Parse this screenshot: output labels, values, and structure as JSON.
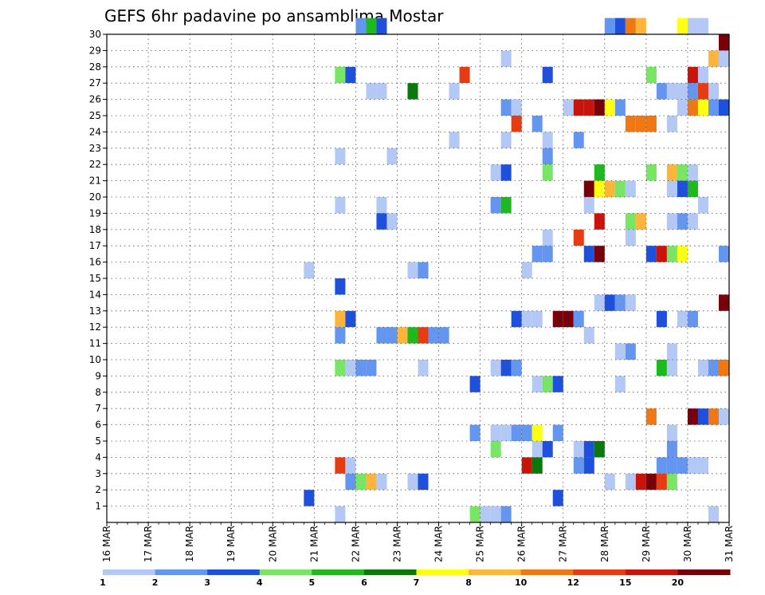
{
  "chart_data": {
    "type": "heatmap",
    "title": "GEFS 6hr padavine po ansamblima Mostar",
    "xlabel": "",
    "ylabel": "",
    "x_tick_labels": [
      "16 MAR",
      "17 MAR",
      "18 MAR",
      "19 MAR",
      "20 MAR",
      "21 MAR",
      "22 MAR",
      "23 MAR",
      "24 MAR",
      "25 MAR",
      "26 MAR",
      "27 MAR",
      "28 MAR",
      "29 MAR",
      "30 MAR",
      "31 MAR"
    ],
    "y_tick_labels": [
      "1",
      "2",
      "3",
      "4",
      "5",
      "6",
      "7",
      "8",
      "9",
      "10",
      "11",
      "12",
      "13",
      "14",
      "15",
      "16",
      "17",
      "18",
      "19",
      "20",
      "21",
      "22",
      "23",
      "24",
      "25",
      "26",
      "27",
      "28",
      "29",
      "30"
    ],
    "xlim_days": [
      16,
      31
    ],
    "steps_per_day": 4,
    "ylim": [
      0,
      30
    ],
    "grid": true,
    "legend": {
      "placement": "bottom",
      "levels": [
        "1",
        "2",
        "3",
        "4",
        "5",
        "6",
        "7",
        "8",
        "10",
        "12",
        "15",
        "20"
      ],
      "colors": [
        "#b4c8f5",
        "#6496f0",
        "#1e50dc",
        "#78e664",
        "#1eb91e",
        "#0a780a",
        "#ffff14",
        "#ffb43c",
        "#f07814",
        "#e63c14",
        "#c8140a",
        "#78000a"
      ]
    },
    "cells": [
      [
        30,
        22.0,
        2
      ],
      [
        30,
        22.25,
        5
      ],
      [
        30,
        22.5,
        3
      ],
      [
        30,
        28.0,
        2
      ],
      [
        30,
        28.25,
        3
      ],
      [
        30,
        28.5,
        9
      ],
      [
        30,
        28.75,
        8
      ],
      [
        30,
        29.75,
        7
      ],
      [
        30,
        30.0,
        1
      ],
      [
        30,
        30.25,
        1
      ],
      [
        29,
        30.75,
        12
      ],
      [
        28,
        25.5,
        1
      ],
      [
        28,
        30.5,
        8
      ],
      [
        28,
        30.75,
        1
      ],
      [
        27,
        21.5,
        4
      ],
      [
        27,
        21.75,
        3
      ],
      [
        27,
        24.5,
        10
      ],
      [
        27,
        26.5,
        3
      ],
      [
        27,
        29.0,
        4
      ],
      [
        27,
        30.0,
        11
      ],
      [
        27,
        30.25,
        1
      ],
      [
        26,
        22.25,
        1
      ],
      [
        26,
        22.5,
        1
      ],
      [
        26,
        23.25,
        6
      ],
      [
        26,
        24.25,
        1
      ],
      [
        26,
        29.25,
        2
      ],
      [
        26,
        29.5,
        1
      ],
      [
        26,
        29.75,
        1
      ],
      [
        26,
        30.0,
        2
      ],
      [
        26,
        30.25,
        10
      ],
      [
        26,
        30.5,
        1
      ],
      [
        25,
        25.5,
        2
      ],
      [
        25,
        25.75,
        1
      ],
      [
        25,
        27.0,
        1
      ],
      [
        25,
        27.25,
        11
      ],
      [
        25,
        27.5,
        11
      ],
      [
        25,
        27.75,
        12
      ],
      [
        25,
        28.0,
        7
      ],
      [
        25,
        28.25,
        2
      ],
      [
        25,
        29.75,
        1
      ],
      [
        25,
        30.0,
        9
      ],
      [
        25,
        30.25,
        7
      ],
      [
        25,
        30.5,
        2
      ],
      [
        25,
        30.75,
        3
      ],
      [
        24,
        25.75,
        10
      ],
      [
        24,
        26.25,
        2
      ],
      [
        24,
        28.5,
        9
      ],
      [
        24,
        28.75,
        9
      ],
      [
        24,
        29.0,
        9
      ],
      [
        24,
        29.5,
        1
      ],
      [
        23,
        24.25,
        1
      ],
      [
        23,
        25.5,
        1
      ],
      [
        23,
        26.5,
        1
      ],
      [
        23,
        27.25,
        2
      ],
      [
        22,
        21.5,
        1
      ],
      [
        22,
        22.75,
        1
      ],
      [
        22,
        26.5,
        2
      ],
      [
        21,
        25.25,
        1
      ],
      [
        21,
        25.5,
        3
      ],
      [
        21,
        26.5,
        4
      ],
      [
        21,
        27.75,
        5
      ],
      [
        21,
        29.0,
        4
      ],
      [
        21,
        29.5,
        8
      ],
      [
        21,
        29.75,
        4
      ],
      [
        21,
        30.0,
        1
      ],
      [
        20,
        27.5,
        12
      ],
      [
        20,
        27.75,
        7
      ],
      [
        20,
        28.0,
        8
      ],
      [
        20,
        28.25,
        4
      ],
      [
        20,
        28.5,
        1
      ],
      [
        20,
        29.5,
        1
      ],
      [
        20,
        29.75,
        3
      ],
      [
        20,
        30.0,
        5
      ],
      [
        19,
        21.5,
        1
      ],
      [
        19,
        22.5,
        1
      ],
      [
        19,
        25.25,
        2
      ],
      [
        19,
        25.5,
        5
      ],
      [
        19,
        27.5,
        1
      ],
      [
        19,
        30.25,
        1
      ],
      [
        18,
        22.5,
        3
      ],
      [
        18,
        22.75,
        1
      ],
      [
        18,
        27.75,
        11
      ],
      [
        18,
        28.5,
        4
      ],
      [
        18,
        28.75,
        8
      ],
      [
        18,
        29.5,
        1
      ],
      [
        18,
        29.75,
        2
      ],
      [
        18,
        30.0,
        1
      ],
      [
        17,
        26.5,
        1
      ],
      [
        17,
        27.25,
        10
      ],
      [
        17,
        28.5,
        1
      ],
      [
        16,
        26.25,
        2
      ],
      [
        16,
        26.5,
        2
      ],
      [
        16,
        27.5,
        3
      ],
      [
        16,
        27.75,
        12
      ],
      [
        16,
        29.0,
        3
      ],
      [
        16,
        29.25,
        11
      ],
      [
        16,
        29.5,
        4
      ],
      [
        16,
        29.75,
        7
      ],
      [
        16,
        30.75,
        2
      ],
      [
        15,
        20.75,
        1
      ],
      [
        15,
        23.25,
        1
      ],
      [
        15,
        23.5,
        2
      ],
      [
        15,
        26.0,
        1
      ],
      [
        14,
        21.5,
        3
      ],
      [
        13,
        27.75,
        1
      ],
      [
        13,
        28.0,
        3
      ],
      [
        13,
        28.25,
        2
      ],
      [
        13,
        28.5,
        1
      ],
      [
        13,
        30.75,
        12
      ],
      [
        12,
        21.5,
        8
      ],
      [
        12,
        21.75,
        3
      ],
      [
        12,
        25.75,
        3
      ],
      [
        12,
        26.0,
        1
      ],
      [
        12,
        26.25,
        1
      ],
      [
        12,
        26.75,
        12
      ],
      [
        12,
        27.0,
        12
      ],
      [
        12,
        27.25,
        2
      ],
      [
        12,
        29.25,
        3
      ],
      [
        12,
        29.75,
        1
      ],
      [
        12,
        30.0,
        2
      ],
      [
        11,
        21.5,
        2
      ],
      [
        11,
        22.5,
        2
      ],
      [
        11,
        22.75,
        2
      ],
      [
        11,
        23.0,
        8
      ],
      [
        11,
        23.25,
        5
      ],
      [
        11,
        23.5,
        10
      ],
      [
        11,
        23.75,
        2
      ],
      [
        11,
        24.0,
        2
      ],
      [
        11,
        27.5,
        1
      ],
      [
        10,
        28.25,
        1
      ],
      [
        10,
        28.5,
        2
      ],
      [
        10,
        29.5,
        1
      ],
      [
        9,
        21.5,
        4
      ],
      [
        9,
        21.75,
        1
      ],
      [
        9,
        22.0,
        2
      ],
      [
        9,
        22.25,
        2
      ],
      [
        9,
        23.5,
        1
      ],
      [
        9,
        25.25,
        1
      ],
      [
        9,
        25.5,
        3
      ],
      [
        9,
        25.75,
        2
      ],
      [
        9,
        29.25,
        5
      ],
      [
        9,
        29.5,
        1
      ],
      [
        9,
        30.25,
        1
      ],
      [
        9,
        30.5,
        2
      ],
      [
        9,
        30.75,
        9
      ],
      [
        8,
        24.75,
        3
      ],
      [
        8,
        26.25,
        1
      ],
      [
        8,
        26.5,
        4
      ],
      [
        8,
        26.75,
        3
      ],
      [
        8,
        28.25,
        1
      ],
      [
        6,
        29.0,
        9
      ],
      [
        6,
        30.0,
        12
      ],
      [
        6,
        30.25,
        3
      ],
      [
        6,
        30.5,
        9
      ],
      [
        6,
        30.75,
        1
      ],
      [
        5,
        24.75,
        2
      ],
      [
        5,
        25.25,
        1
      ],
      [
        5,
        25.5,
        1
      ],
      [
        5,
        25.75,
        2
      ],
      [
        5,
        26.0,
        2
      ],
      [
        5,
        26.25,
        7
      ],
      [
        5,
        26.75,
        2
      ],
      [
        5,
        29.5,
        1
      ],
      [
        4,
        25.25,
        4
      ],
      [
        4,
        26.25,
        1
      ],
      [
        4,
        26.5,
        3
      ],
      [
        4,
        27.25,
        1
      ],
      [
        4,
        27.5,
        3
      ],
      [
        4,
        27.75,
        6
      ],
      [
        4,
        29.5,
        2
      ],
      [
        3,
        21.5,
        10
      ],
      [
        3,
        21.75,
        1
      ],
      [
        3,
        26.0,
        11
      ],
      [
        3,
        26.25,
        6
      ],
      [
        3,
        27.25,
        2
      ],
      [
        3,
        27.5,
        3
      ],
      [
        3,
        29.25,
        2
      ],
      [
        3,
        29.5,
        2
      ],
      [
        3,
        29.75,
        2
      ],
      [
        3,
        30.0,
        1
      ],
      [
        3,
        30.25,
        1
      ],
      [
        2,
        21.75,
        2
      ],
      [
        2,
        22.0,
        4
      ],
      [
        2,
        22.25,
        8
      ],
      [
        2,
        22.5,
        1
      ],
      [
        2,
        23.25,
        1
      ],
      [
        2,
        23.5,
        3
      ],
      [
        2,
        28.0,
        1
      ],
      [
        2,
        28.5,
        1
      ],
      [
        2,
        28.75,
        11
      ],
      [
        2,
        29.0,
        12
      ],
      [
        2,
        29.25,
        10
      ],
      [
        2,
        29.5,
        4
      ],
      [
        1,
        20.75,
        3
      ],
      [
        1,
        26.75,
        3
      ],
      [
        0,
        21.5,
        1
      ],
      [
        0,
        24.75,
        4
      ],
      [
        0,
        25.0,
        1
      ],
      [
        0,
        25.25,
        1
      ],
      [
        0,
        25.5,
        2
      ],
      [
        0,
        30.5,
        1
      ]
    ]
  }
}
